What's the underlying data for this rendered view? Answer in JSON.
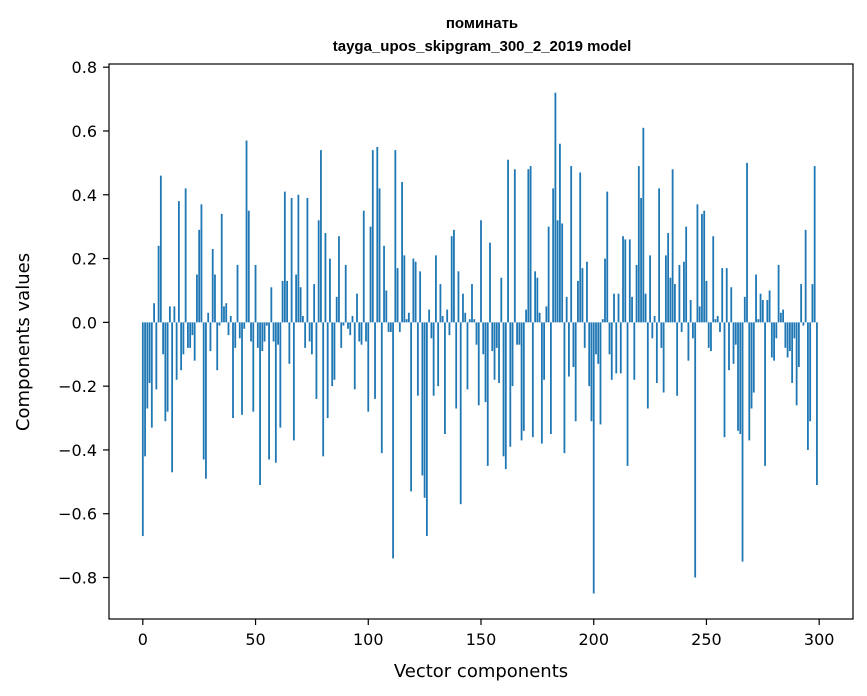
{
  "chart_data": {
    "type": "bar",
    "title": "поминать",
    "subtitle": "tayga_upos_skipgram_300_2_2019 model",
    "xlabel": "Vector components",
    "ylabel": "Components values",
    "xlim": [
      -15,
      315
    ],
    "ylim": [
      -0.93,
      0.81
    ],
    "xticks": [
      0,
      50,
      100,
      150,
      200,
      250,
      300
    ],
    "xtick_labels": [
      "0",
      "50",
      "100",
      "150",
      "200",
      "250",
      "300"
    ],
    "yticks": [
      -0.8,
      -0.6,
      -0.4,
      -0.2,
      0.0,
      0.2,
      0.4,
      0.6,
      0.8
    ],
    "ytick_labels": [
      "−0.8",
      "−0.6",
      "−0.4",
      "−0.2",
      "0.0",
      "0.2",
      "0.4",
      "0.6",
      "0.8"
    ],
    "bar_color": "#1f77b4",
    "grid": false,
    "x": [
      0,
      1,
      2,
      3,
      4,
      5,
      6,
      7,
      8,
      9,
      10,
      11,
      12,
      13,
      14,
      15,
      16,
      17,
      18,
      19,
      20,
      21,
      22,
      23,
      24,
      25,
      26,
      27,
      28,
      29,
      30,
      31,
      32,
      33,
      34,
      35,
      36,
      37,
      38,
      39,
      40,
      41,
      42,
      43,
      44,
      45,
      46,
      47,
      48,
      49,
      50,
      51,
      52,
      53,
      54,
      55,
      56,
      57,
      58,
      59,
      60,
      61,
      62,
      63,
      64,
      65,
      66,
      67,
      68,
      69,
      70,
      71,
      72,
      73,
      74,
      75,
      76,
      77,
      78,
      79,
      80,
      81,
      82,
      83,
      84,
      85,
      86,
      87,
      88,
      89,
      90,
      91,
      92,
      93,
      94,
      95,
      96,
      97,
      98,
      99,
      100,
      101,
      102,
      103,
      104,
      105,
      106,
      107,
      108,
      109,
      110,
      111,
      112,
      113,
      114,
      115,
      116,
      117,
      118,
      119,
      120,
      121,
      122,
      123,
      124,
      125,
      126,
      127,
      128,
      129,
      130,
      131,
      132,
      133,
      134,
      135,
      136,
      137,
      138,
      139,
      140,
      141,
      142,
      143,
      144,
      145,
      146,
      147,
      148,
      149,
      150,
      151,
      152,
      153,
      154,
      155,
      156,
      157,
      158,
      159,
      160,
      161,
      162,
      163,
      164,
      165,
      166,
      167,
      168,
      169,
      170,
      171,
      172,
      173,
      174,
      175,
      176,
      177,
      178,
      179,
      180,
      181,
      182,
      183,
      184,
      185,
      186,
      187,
      188,
      189,
      190,
      191,
      192,
      193,
      194,
      195,
      196,
      197,
      198,
      199,
      200,
      201,
      202,
      203,
      204,
      205,
      206,
      207,
      208,
      209,
      210,
      211,
      212,
      213,
      214,
      215,
      216,
      217,
      218,
      219,
      220,
      221,
      222,
      223,
      224,
      225,
      226,
      227,
      228,
      229,
      230,
      231,
      232,
      233,
      234,
      235,
      236,
      237,
      238,
      239,
      240,
      241,
      242,
      243,
      244,
      245,
      246,
      247,
      248,
      249,
      250,
      251,
      252,
      253,
      254,
      255,
      256,
      257,
      258,
      259,
      260,
      261,
      262,
      263,
      264,
      265,
      266,
      267,
      268,
      269,
      270,
      271,
      272,
      273,
      274,
      275,
      276,
      277,
      278,
      279,
      280,
      281,
      282,
      283,
      284,
      285,
      286,
      287,
      288,
      289,
      290,
      291,
      292,
      293,
      294,
      295,
      296,
      297,
      298,
      299
    ],
    "values": [
      -0.67,
      -0.42,
      -0.27,
      -0.19,
      -0.33,
      0.06,
      -0.21,
      0.24,
      0.46,
      -0.1,
      -0.31,
      -0.28,
      0.05,
      -0.47,
      0.05,
      -0.18,
      0.38,
      -0.15,
      -0.1,
      0.42,
      -0.08,
      -0.08,
      -0.04,
      -0.12,
      0.15,
      0.29,
      0.37,
      -0.43,
      -0.49,
      0.03,
      -0.09,
      0.23,
      0.15,
      -0.15,
      -0.01,
      0.34,
      0.05,
      0.06,
      -0.04,
      0.02,
      -0.3,
      -0.08,
      0.18,
      -0.05,
      -0.29,
      -0.02,
      0.57,
      0.35,
      -0.06,
      -0.28,
      0.18,
      -0.08,
      -0.51,
      -0.09,
      -0.06,
      -0.01,
      -0.43,
      0.11,
      -0.06,
      -0.44,
      -0.07,
      -0.33,
      0.13,
      0.41,
      0.13,
      -0.13,
      0.39,
      -0.37,
      0.15,
      0.4,
      0.11,
      0.02,
      -0.08,
      0.39,
      -0.06,
      -0.1,
      0.12,
      -0.24,
      0.32,
      0.54,
      -0.42,
      0.28,
      -0.3,
      0.2,
      -0.2,
      -0.18,
      0.08,
      0.27,
      -0.08,
      -0.01,
      0.18,
      -0.02,
      -0.04,
      0.02,
      -0.21,
      0.09,
      -0.06,
      -0.07,
      0.35,
      -0.06,
      -0.28,
      0.3,
      0.54,
      -0.24,
      0.55,
      0.42,
      -0.41,
      0.24,
      0.1,
      -0.03,
      -0.03,
      -0.74,
      0.54,
      0.17,
      -0.03,
      0.44,
      0.21,
      0.01,
      0.03,
      -0.53,
      0.2,
      0.19,
      -0.23,
      0.16,
      -0.48,
      -0.55,
      -0.67,
      0.04,
      -0.05,
      -0.23,
      0.21,
      -0.2,
      0.12,
      0.02,
      -0.35,
      0.04,
      -0.04,
      0.27,
      0.29,
      -0.27,
      0.16,
      -0.57,
      0.09,
      0.03,
      -0.21,
      0.01,
      0.12,
      0.01,
      -0.07,
      -0.26,
      0.32,
      -0.1,
      -0.25,
      -0.45,
      0.25,
      -0.09,
      -0.18,
      -0.08,
      -0.19,
      0.14,
      -0.42,
      -0.46,
      0.51,
      -0.39,
      -0.2,
      0.48,
      -0.07,
      -0.07,
      -0.37,
      -0.34,
      0.04,
      0.48,
      0.49,
      -0.36,
      0.16,
      0.14,
      0.03,
      -0.38,
      -0.18,
      0.05,
      0.3,
      -0.35,
      0.42,
      0.72,
      0.32,
      0.56,
      0.31,
      -0.41,
      0.08,
      -0.17,
      0.49,
      -0.14,
      -0.31,
      0.13,
      0.47,
      0.17,
      -0.08,
      0.19,
      -0.2,
      -0.31,
      -0.85,
      -0.1,
      -0.13,
      -0.32,
      0.01,
      0.2,
      0.41,
      -0.1,
      -0.18,
      0.09,
      -0.16,
      0.09,
      -0.16,
      0.27,
      0.26,
      -0.45,
      0.26,
      0.08,
      -0.18,
      0.18,
      0.49,
      0.39,
      0.61,
      0.09,
      -0.27,
      0.21,
      -0.05,
      0.02,
      -0.19,
      0.42,
      -0.08,
      -0.22,
      0.21,
      0.28,
      0.14,
      0.48,
      0.12,
      -0.23,
      0.18,
      -0.03,
      0.19,
      0.3,
      -0.12,
      0.07,
      -0.05,
      -0.8,
      0.37,
      0.05,
      0.34,
      0.35,
      0.13,
      -0.08,
      -0.09,
      0.27,
      0.01,
      0.02,
      -0.03,
      0.17,
      -0.36,
      0.17,
      -0.15,
      0.11,
      -0.13,
      -0.07,
      -0.34,
      -0.35,
      -0.75,
      0.08,
      0.5,
      -0.37,
      -0.27,
      -0.22,
      0.15,
      0.01,
      0.09,
      0.07,
      -0.45,
      0.07,
      0.1,
      -0.11,
      -0.12,
      -0.05,
      0.18,
      0.03,
      0.04,
      -0.08,
      -0.11,
      -0.09,
      -0.19,
      -0.05,
      -0.26,
      -0.14,
      0.12,
      -0.01,
      0.29,
      -0.4,
      -0.31,
      0.12,
      0.49,
      -0.51
    ]
  }
}
